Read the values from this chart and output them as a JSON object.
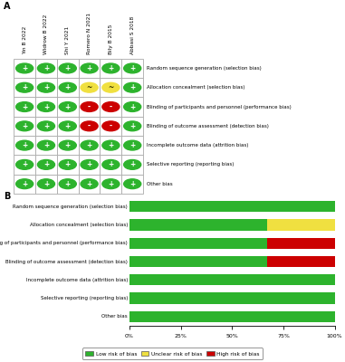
{
  "studies": [
    "Yin B 2022",
    "Widrow B 2022",
    "Shi Y 2021",
    "Romero N 2021",
    "Bily B 2015",
    "Abbasi S 2018"
  ],
  "bias_categories": [
    "Random sequence generation (selection bias)",
    "Allocation concealment (selection bias)",
    "Blinding of participants and personnel (performance bias)",
    "Blinding of outcome assessment (detection bias)",
    "Incomplete outcome data (attrition bias)",
    "Selective reporting (reporting bias)",
    "Other bias"
  ],
  "grid_data": [
    [
      "green",
      "green",
      "green",
      "green",
      "green",
      "green"
    ],
    [
      "green",
      "green",
      "green",
      "yellow",
      "yellow",
      "green"
    ],
    [
      "green",
      "green",
      "green",
      "red",
      "red",
      "green"
    ],
    [
      "green",
      "green",
      "green",
      "red",
      "red",
      "green"
    ],
    [
      "green",
      "green",
      "green",
      "green",
      "green",
      "green"
    ],
    [
      "green",
      "green",
      "green",
      "green",
      "green",
      "green"
    ],
    [
      "green",
      "green",
      "green",
      "green",
      "green",
      "green"
    ]
  ],
  "bar_data": {
    "green": [
      100,
      67,
      67,
      67,
      100,
      100,
      100
    ],
    "yellow": [
      0,
      33,
      0,
      0,
      0,
      0,
      0
    ],
    "red": [
      0,
      0,
      33,
      33,
      0,
      0,
      0
    ]
  },
  "color_map": {
    "green": "#2db32d",
    "yellow": "#f0e040",
    "red": "#cc0000"
  },
  "symbol_map": {
    "green": "+",
    "yellow": "~",
    "red": "-"
  },
  "bg_color": "#ffffff",
  "label_A": "A",
  "label_B": "B"
}
